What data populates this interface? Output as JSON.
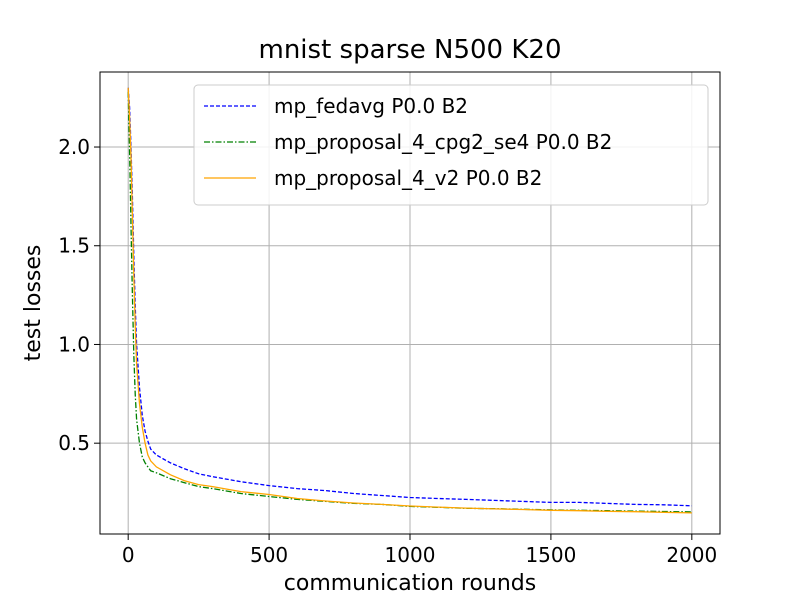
{
  "chart_data": {
    "type": "line",
    "title": "mnist sparse N500 K20",
    "xlabel": "communication rounds",
    "ylabel": "test losses",
    "xlim": [
      -100,
      2100
    ],
    "ylim": [
      0.04,
      2.38
    ],
    "xticks": [
      0,
      500,
      1000,
      1500,
      2000
    ],
    "yticks": [
      0.5,
      1.0,
      1.5,
      2.0
    ],
    "xtick_labels": [
      "0",
      "500",
      "1000",
      "1500",
      "2000"
    ],
    "ytick_labels": [
      "0.5",
      "1.0",
      "1.5",
      "2.0"
    ],
    "grid": true,
    "legend_position": "top-right",
    "series": [
      {
        "name": "mp_fedavg P0.0 B2",
        "color": "#0000ff",
        "style": "dashed",
        "points": [
          [
            0,
            2.3
          ],
          [
            5,
            2.2
          ],
          [
            10,
            2.0
          ],
          [
            15,
            1.75
          ],
          [
            20,
            1.45
          ],
          [
            25,
            1.2
          ],
          [
            30,
            1.0
          ],
          [
            40,
            0.78
          ],
          [
            50,
            0.64
          ],
          [
            60,
            0.56
          ],
          [
            70,
            0.51
          ],
          [
            80,
            0.47
          ],
          [
            100,
            0.44
          ],
          [
            125,
            0.42
          ],
          [
            150,
            0.4
          ],
          [
            200,
            0.37
          ],
          [
            250,
            0.345
          ],
          [
            300,
            0.33
          ],
          [
            400,
            0.305
          ],
          [
            500,
            0.285
          ],
          [
            600,
            0.27
          ],
          [
            700,
            0.26
          ],
          [
            800,
            0.245
          ],
          [
            900,
            0.235
          ],
          [
            1000,
            0.225
          ],
          [
            1100,
            0.22
          ],
          [
            1200,
            0.215
          ],
          [
            1300,
            0.21
          ],
          [
            1400,
            0.205
          ],
          [
            1500,
            0.2
          ],
          [
            1600,
            0.2
          ],
          [
            1700,
            0.195
          ],
          [
            1800,
            0.19
          ],
          [
            1900,
            0.188
          ],
          [
            2000,
            0.183
          ]
        ]
      },
      {
        "name": "mp_proposal_4_cpg2_se4 P0.0 B2",
        "color": "#008000",
        "style": "dashdot",
        "points": [
          [
            0,
            2.28
          ],
          [
            3,
            2.1
          ],
          [
            6,
            1.9
          ],
          [
            10,
            1.6
          ],
          [
            15,
            1.25
          ],
          [
            20,
            0.95
          ],
          [
            25,
            0.75
          ],
          [
            30,
            0.62
          ],
          [
            40,
            0.5
          ],
          [
            50,
            0.43
          ],
          [
            60,
            0.4
          ],
          [
            70,
            0.38
          ],
          [
            80,
            0.36
          ],
          [
            100,
            0.35
          ],
          [
            150,
            0.32
          ],
          [
            200,
            0.3
          ],
          [
            250,
            0.28
          ],
          [
            300,
            0.27
          ],
          [
            400,
            0.245
          ],
          [
            500,
            0.23
          ],
          [
            600,
            0.215
          ],
          [
            700,
            0.205
          ],
          [
            800,
            0.195
          ],
          [
            900,
            0.19
          ],
          [
            1000,
            0.18
          ],
          [
            1100,
            0.175
          ],
          [
            1200,
            0.17
          ],
          [
            1300,
            0.168
          ],
          [
            1400,
            0.165
          ],
          [
            1500,
            0.162
          ],
          [
            1600,
            0.16
          ],
          [
            1700,
            0.158
          ],
          [
            1800,
            0.156
          ],
          [
            1900,
            0.154
          ],
          [
            2000,
            0.152
          ]
        ]
      },
      {
        "name": "mp_proposal_4_v2 P0.0 B2",
        "color": "#ffa500",
        "style": "solid",
        "points": [
          [
            0,
            2.3
          ],
          [
            5,
            2.15
          ],
          [
            10,
            1.95
          ],
          [
            15,
            1.65
          ],
          [
            20,
            1.35
          ],
          [
            25,
            1.1
          ],
          [
            30,
            0.9
          ],
          [
            40,
            0.7
          ],
          [
            50,
            0.58
          ],
          [
            60,
            0.5
          ],
          [
            70,
            0.44
          ],
          [
            80,
            0.41
          ],
          [
            100,
            0.38
          ],
          [
            150,
            0.34
          ],
          [
            200,
            0.31
          ],
          [
            250,
            0.29
          ],
          [
            300,
            0.28
          ],
          [
            400,
            0.255
          ],
          [
            500,
            0.24
          ],
          [
            600,
            0.22
          ],
          [
            700,
            0.207
          ],
          [
            800,
            0.197
          ],
          [
            900,
            0.19
          ],
          [
            1000,
            0.182
          ],
          [
            1100,
            0.176
          ],
          [
            1200,
            0.171
          ],
          [
            1300,
            0.167
          ],
          [
            1400,
            0.164
          ],
          [
            1500,
            0.16
          ],
          [
            1600,
            0.158
          ],
          [
            1700,
            0.155
          ],
          [
            1800,
            0.153
          ],
          [
            1900,
            0.15
          ],
          [
            2000,
            0.147
          ]
        ]
      }
    ]
  }
}
